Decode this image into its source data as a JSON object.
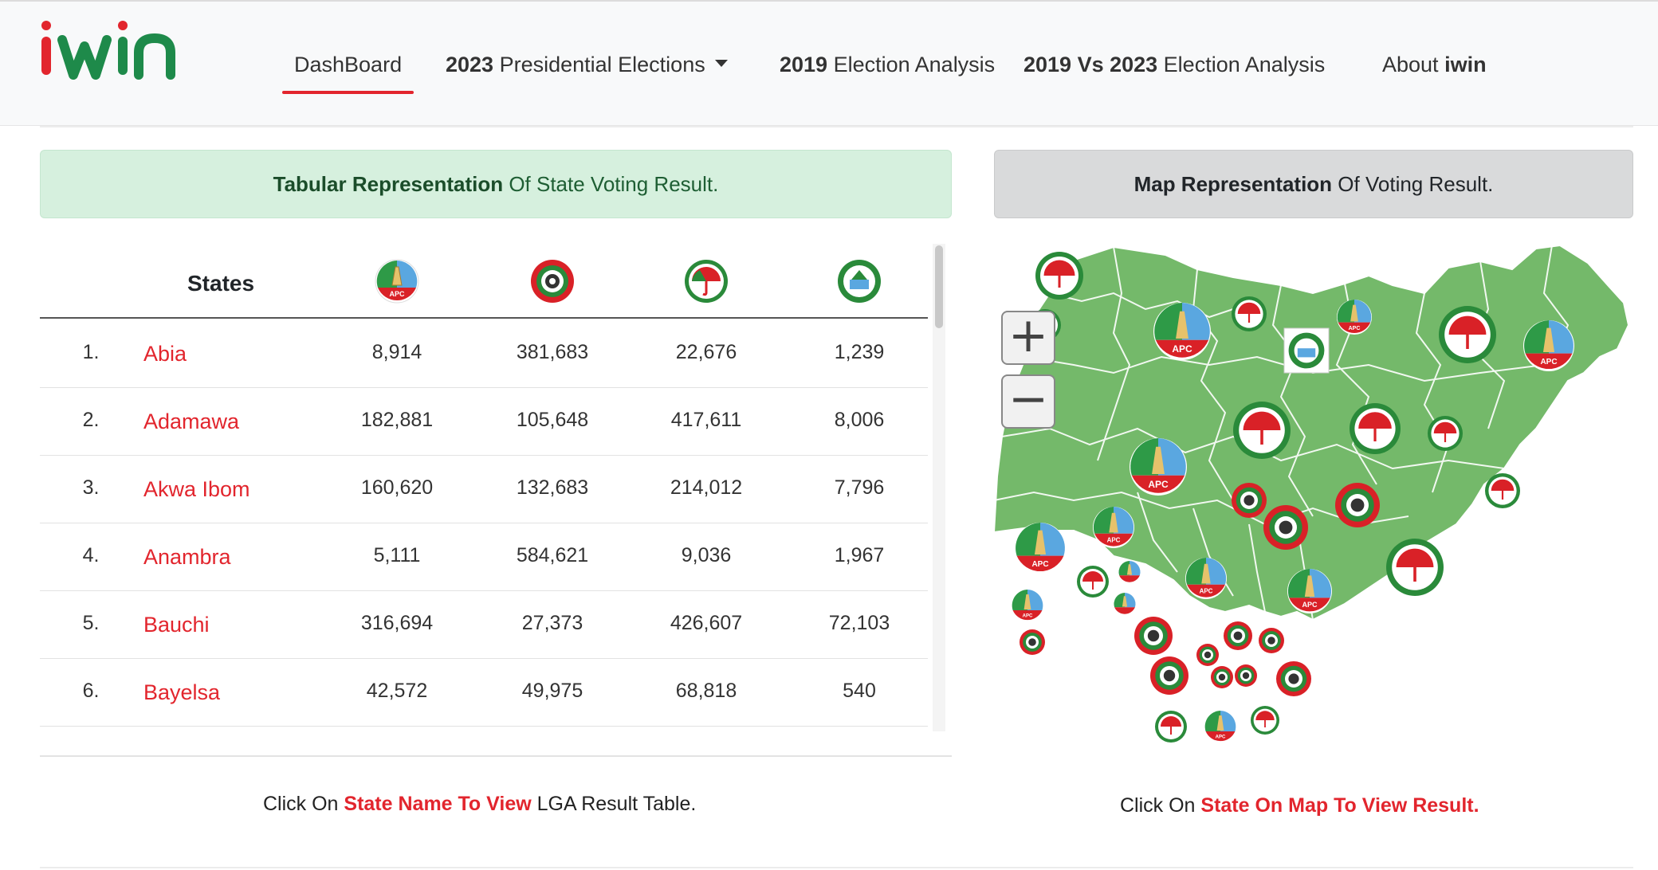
{
  "brand": {
    "name": "iwin",
    "colors": {
      "red": "#e2252d",
      "green": "#1e8a4a"
    }
  },
  "nav": [
    {
      "bold": "",
      "text": "DashBoard",
      "active": true
    },
    {
      "bold": "2023",
      "text": " Presidential Elections",
      "dropdown": true
    },
    {
      "bold": "2019",
      "text": " Election Analysis"
    },
    {
      "bold": "2019 Vs 2023",
      "text": " Election Analysis"
    },
    {
      "bold": "iwin",
      "text": "About ",
      "bold_after": true
    }
  ],
  "table_panel": {
    "title_bold": "Tabular Representation",
    "title_rest": " Of State Voting Result."
  },
  "map_panel": {
    "title_bold": "Map Representation",
    "title_rest": " Of Voting Result."
  },
  "table": {
    "header_states": "States",
    "party_icons": [
      "apc-logo-icon",
      "lp-logo-icon",
      "pdp-logo-icon",
      "nnpp-logo-icon"
    ],
    "party_labels": {
      "apc": "APC"
    },
    "rows": [
      {
        "n": "1.",
        "state": "Abia",
        "v": [
          "8,914",
          "381,683",
          "22,676",
          "1,239"
        ]
      },
      {
        "n": "2.",
        "state": "Adamawa",
        "v": [
          "182,881",
          "105,648",
          "417,611",
          "8,006"
        ]
      },
      {
        "n": "3.",
        "state": "Akwa Ibom",
        "v": [
          "160,620",
          "132,683",
          "214,012",
          "7,796"
        ]
      },
      {
        "n": "4.",
        "state": "Anambra",
        "v": [
          "5,111",
          "584,621",
          "9,036",
          "1,967"
        ]
      },
      {
        "n": "5.",
        "state": "Bauchi",
        "v": [
          "316,694",
          "27,373",
          "426,607",
          "72,103"
        ]
      },
      {
        "n": "6.",
        "state": "Bayelsa",
        "v": [
          "42,572",
          "49,975",
          "68,818",
          "540"
        ]
      }
    ]
  },
  "zoom": {
    "in": "+",
    "out": "−"
  },
  "captions": {
    "left": {
      "pre": "Click On ",
      "bold": "State Name To View",
      "post": " LGA Result Table."
    },
    "right": {
      "pre": "Click On ",
      "bold": "State On Map To View Result.",
      "post": ""
    }
  },
  "map_colors": {
    "land": "#74b96a",
    "border": "#ffffff",
    "apc_blue": "#5aa7e0",
    "apc_green": "#2e9a47",
    "pdp_red": "#d92127",
    "lp_green": "#2a8a3a"
  }
}
